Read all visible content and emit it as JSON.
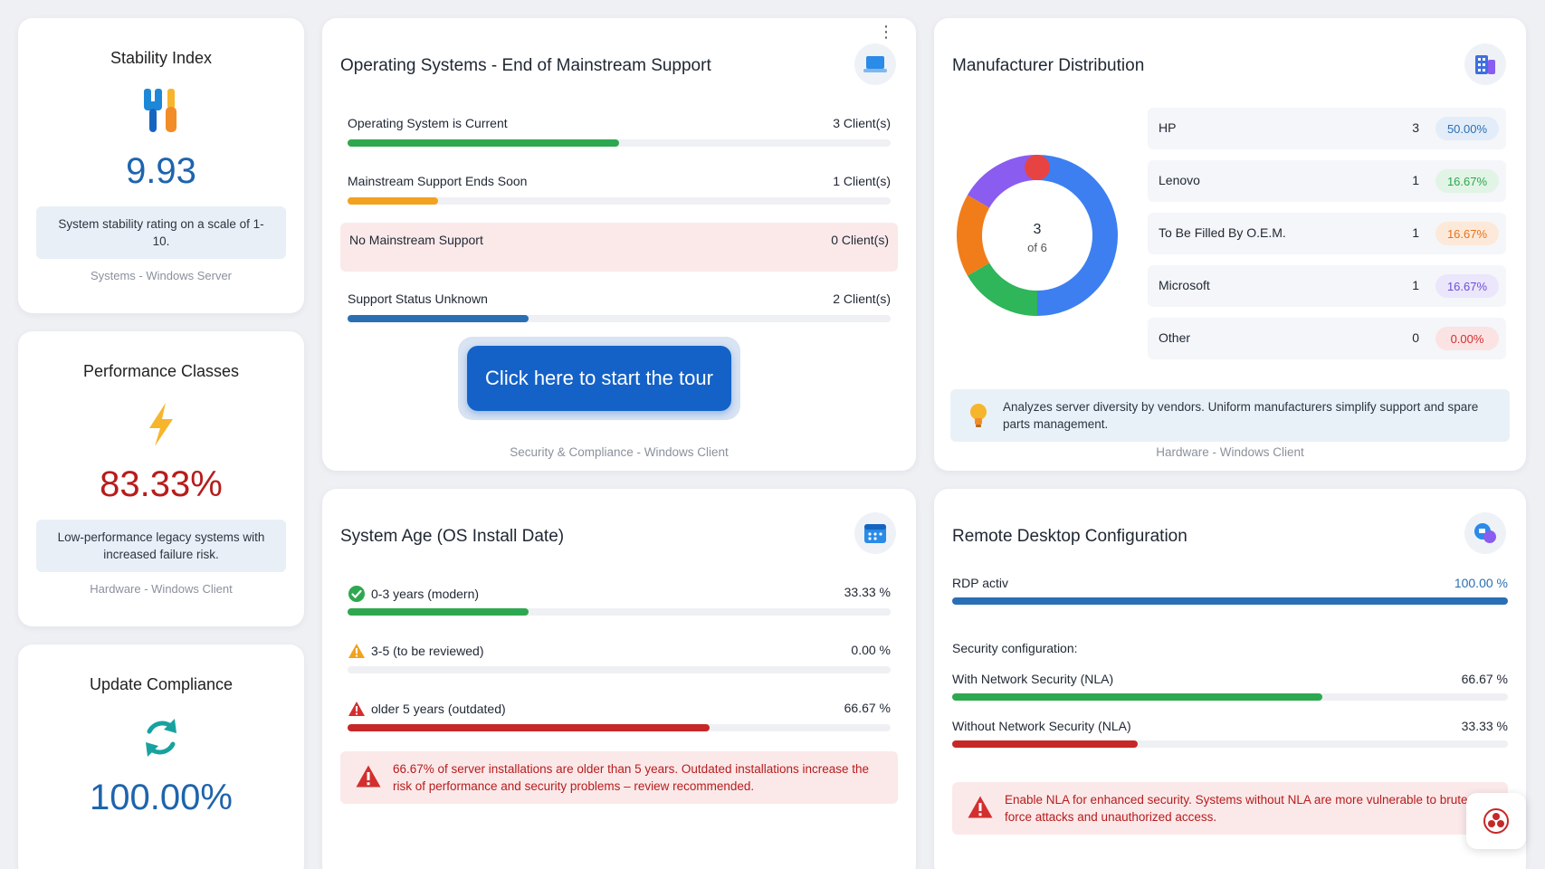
{
  "stability": {
    "title": "Stability Index",
    "value": "9.93",
    "desc": "System stability rating on a scale of 1-10.",
    "footer": "Systems - Windows Server",
    "icon": "tools-icon"
  },
  "performance": {
    "title": "Performance Classes",
    "value": "83.33%",
    "desc": "Low-performance legacy systems with increased failure risk.",
    "footer": "Hardware - Windows Client",
    "icon": "lightning-icon"
  },
  "update": {
    "title": "Update Compliance",
    "value": "100.00%",
    "icon": "refresh-icon"
  },
  "os_support": {
    "title": "Operating Systems - End of Mainstream Support",
    "rows": [
      {
        "label": "Operating System is Current",
        "value": "3 Client(s)",
        "fraction": 0.5,
        "color": "#2ea84f"
      },
      {
        "label": "Mainstream Support Ends Soon",
        "value": "1 Client(s)",
        "fraction": 0.1667,
        "color": "#f2a21e"
      },
      {
        "label": "No Mainstream Support",
        "value": "0 Client(s)",
        "fraction": 0,
        "color": "#d32f2f"
      },
      {
        "label": "Support Status Unknown",
        "value": "2 Client(s)",
        "fraction": 0.3333,
        "color": "#2a6fb4"
      }
    ],
    "tour_button": "Click here to start the tour",
    "footer": "Security & Compliance - Windows Client"
  },
  "manufacturer": {
    "title": "Manufacturer Distribution",
    "center_value": "3",
    "center_sub": "of 6",
    "rows": [
      {
        "name": "HP",
        "count": "3",
        "pct": "50.00%",
        "pct_color": "#2a6fb4",
        "pct_bg": "#e3edf9",
        "value": 3,
        "color": "#3d7ff0"
      },
      {
        "name": "Lenovo",
        "count": "1",
        "pct": "16.67%",
        "pct_color": "#2ea84f",
        "pct_bg": "#e2f4e6",
        "value": 1,
        "color": "#2fb55a"
      },
      {
        "name": "To Be Filled By O.E.M.",
        "count": "1",
        "pct": "16.67%",
        "pct_color": "#e8731b",
        "pct_bg": "#fde9da",
        "value": 1,
        "color": "#f07d1a"
      },
      {
        "name": "Microsoft",
        "count": "1",
        "pct": "16.67%",
        "pct_color": "#6b4fd8",
        "pct_bg": "#ebe6fb",
        "value": 1,
        "color": "#8a5cf0"
      },
      {
        "name": "Other",
        "count": "0",
        "pct": "0.00%",
        "pct_color": "#d32f2f",
        "pct_bg": "#fbe3e3",
        "value": 0,
        "color": "#e84343"
      }
    ],
    "info": "Analyzes server diversity by vendors. Uniform manufacturers simplify support and spare parts management.",
    "footer": "Hardware - Windows Client"
  },
  "system_age": {
    "title": "System Age (OS Install Date)",
    "rows": [
      {
        "label": "0-3 years (modern)",
        "value": "33.33 %",
        "fraction": 0.3333,
        "color": "#2ea84f",
        "icon": "check-circle-icon"
      },
      {
        "label": "3-5 (to be reviewed)",
        "value": "0.00 %",
        "fraction": 0,
        "color": "#f2a21e",
        "icon": "warning-icon"
      },
      {
        "label": "older 5 years (outdated)",
        "value": "66.67 %",
        "fraction": 0.6667,
        "color": "#c62828",
        "icon": "alert-icon"
      }
    ],
    "warning": "66.67% of server installations are older than 5 years. Outdated installations increase the risk of performance and security problems – review recommended."
  },
  "rdp": {
    "title": "Remote Desktop Configuration",
    "active_label": "RDP activ",
    "active_value": "100.00 %",
    "active_fraction": 1,
    "security_label": "Security configuration:",
    "rows": [
      {
        "label": "With Network Security (NLA)",
        "value": "66.67 %",
        "fraction": 0.6667,
        "color": "#2ea84f"
      },
      {
        "label": "Without Network Security (NLA)",
        "value": "33.33 %",
        "fraction": 0.3333,
        "color": "#c62828"
      }
    ],
    "warning": "Enable NLA for enhanced security. Systems without NLA are more vulnerable to brute-force attacks and unauthorized access."
  }
}
